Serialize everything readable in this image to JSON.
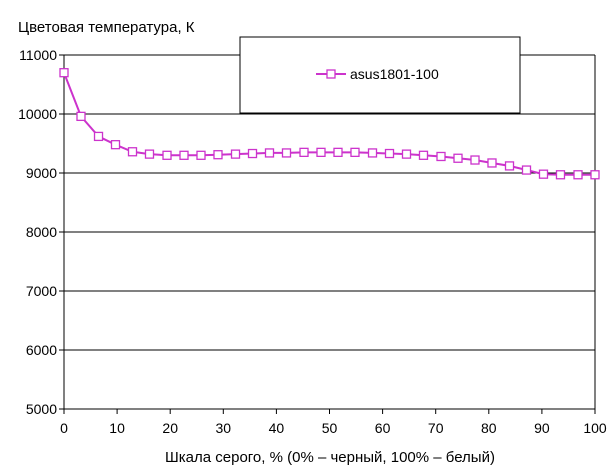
{
  "chart_data": {
    "type": "line",
    "title": "Цветовая температура, К",
    "xlabel": "Шкала серого, % (0% – черный, 100% – белый)",
    "ylabel": "",
    "xlim": [
      0,
      100
    ],
    "ylim": [
      5000,
      11000
    ],
    "x_ticks": [
      0,
      10,
      20,
      30,
      40,
      50,
      60,
      70,
      80,
      90,
      100
    ],
    "y_ticks": [
      5000,
      6000,
      7000,
      8000,
      9000,
      10000,
      11000
    ],
    "grid": "horizontal",
    "legend_position": "top-center",
    "colors": {
      "series": "#cc33cc",
      "marker_fill": "#ffffff",
      "grid": "#000000"
    },
    "series": [
      {
        "name": "asus1801-100",
        "x": [
          0,
          3.2,
          6.5,
          9.7,
          12.9,
          16.1,
          19.4,
          22.6,
          25.8,
          29.0,
          32.3,
          35.5,
          38.7,
          41.9,
          45.2,
          48.4,
          51.6,
          54.8,
          58.1,
          61.3,
          64.5,
          67.7,
          71.0,
          74.2,
          77.4,
          80.6,
          83.9,
          87.1,
          90.3,
          93.5,
          96.8,
          100
        ],
        "values": [
          10700,
          9960,
          9620,
          9480,
          9360,
          9320,
          9300,
          9300,
          9300,
          9310,
          9320,
          9330,
          9340,
          9340,
          9350,
          9350,
          9350,
          9350,
          9340,
          9330,
          9320,
          9300,
          9280,
          9250,
          9220,
          9170,
          9120,
          9050,
          8980,
          8970,
          8970,
          8970
        ]
      }
    ]
  }
}
